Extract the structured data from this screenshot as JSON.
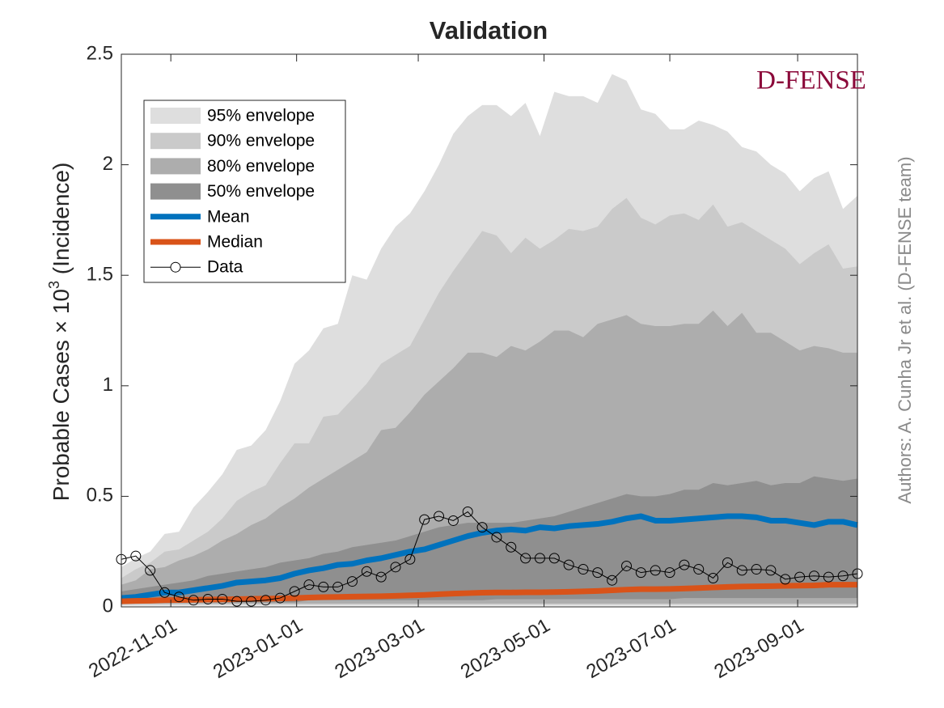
{
  "chart_data": {
    "type": "envelope",
    "title": "Validation",
    "ylabel_parts": [
      "Probable Cases × 10",
      "3",
      " (Incidence)"
    ],
    "watermark": "D-FENSE",
    "credit": "Authors: A. Cunha Jr et al. (D-FENSE team)",
    "x": [
      "2022-10-08",
      "2022-10-15",
      "2022-10-22",
      "2022-10-29",
      "2022-11-05",
      "2022-11-12",
      "2022-11-19",
      "2022-11-26",
      "2022-12-03",
      "2022-12-10",
      "2022-12-17",
      "2022-12-24",
      "2022-12-31",
      "2023-01-07",
      "2023-01-14",
      "2023-01-21",
      "2023-01-28",
      "2023-02-04",
      "2023-02-11",
      "2023-02-18",
      "2023-02-25",
      "2023-03-04",
      "2023-03-11",
      "2023-03-18",
      "2023-03-25",
      "2023-04-01",
      "2023-04-08",
      "2023-04-15",
      "2023-04-22",
      "2023-04-29",
      "2023-05-06",
      "2023-05-13",
      "2023-05-20",
      "2023-05-27",
      "2023-06-03",
      "2023-06-10",
      "2023-06-17",
      "2023-06-24",
      "2023-07-01",
      "2023-07-08",
      "2023-07-15",
      "2023-07-22",
      "2023-07-29",
      "2023-08-05",
      "2023-08-12",
      "2023-08-19",
      "2023-08-26",
      "2023-09-02",
      "2023-09-09",
      "2023-09-16",
      "2023-09-23",
      "2023-09-30"
    ],
    "xlim": [
      "2022-10-08",
      "2023-09-30"
    ],
    "xticks": [
      "2022-11-01",
      "2023-01-01",
      "2023-03-01",
      "2023-05-01",
      "2023-07-01",
      "2023-09-01"
    ],
    "ylim": [
      0,
      2.5
    ],
    "yticks": [
      0,
      0.5,
      1,
      1.5,
      2,
      2.5
    ],
    "envelopes": [
      {
        "name": "95% envelope",
        "color": "#dedede",
        "lower": [
          0.005,
          0.005,
          0.005,
          0.005,
          0.005,
          0.005,
          0.005,
          0.005,
          0.005,
          0.005,
          0.005,
          0.005,
          0.005,
          0.005,
          0.005,
          0.005,
          0.005,
          0.005,
          0.005,
          0.005,
          0.005,
          0.005,
          0.005,
          0.005,
          0.005,
          0.005,
          0.005,
          0.005,
          0.005,
          0.005,
          0.005,
          0.005,
          0.005,
          0.005,
          0.005,
          0.005,
          0.005,
          0.005,
          0.005,
          0.005,
          0.005,
          0.005,
          0.005,
          0.005,
          0.005,
          0.005,
          0.005,
          0.005,
          0.005,
          0.005,
          0.005,
          0.005
        ],
        "upper": [
          0.18,
          0.22,
          0.25,
          0.33,
          0.34,
          0.45,
          0.52,
          0.6,
          0.71,
          0.73,
          0.8,
          0.93,
          1.1,
          1.16,
          1.26,
          1.28,
          1.5,
          1.48,
          1.62,
          1.72,
          1.78,
          1.88,
          2.0,
          2.14,
          2.22,
          2.27,
          2.27,
          2.22,
          2.28,
          2.13,
          2.33,
          2.31,
          2.31,
          2.28,
          2.41,
          2.38,
          2.25,
          2.23,
          2.16,
          2.16,
          2.2,
          2.18,
          2.15,
          2.08,
          2.06,
          2.0,
          1.96,
          1.88,
          1.94,
          1.97,
          1.8,
          1.86
        ]
      },
      {
        "name": "90% envelope",
        "color": "#cacaca",
        "lower": [
          0.01,
          0.01,
          0.01,
          0.01,
          0.01,
          0.01,
          0.01,
          0.01,
          0.01,
          0.01,
          0.01,
          0.01,
          0.01,
          0.01,
          0.01,
          0.01,
          0.01,
          0.01,
          0.01,
          0.01,
          0.01,
          0.01,
          0.01,
          0.01,
          0.01,
          0.01,
          0.01,
          0.01,
          0.01,
          0.01,
          0.01,
          0.01,
          0.01,
          0.01,
          0.01,
          0.01,
          0.01,
          0.01,
          0.01,
          0.01,
          0.01,
          0.01,
          0.01,
          0.01,
          0.01,
          0.01,
          0.01,
          0.01,
          0.01,
          0.01,
          0.01,
          0.01
        ],
        "upper": [
          0.13,
          0.17,
          0.2,
          0.25,
          0.26,
          0.3,
          0.34,
          0.4,
          0.48,
          0.52,
          0.55,
          0.65,
          0.74,
          0.74,
          0.86,
          0.87,
          0.94,
          1.01,
          1.1,
          1.14,
          1.18,
          1.3,
          1.42,
          1.52,
          1.61,
          1.7,
          1.68,
          1.6,
          1.67,
          1.62,
          1.66,
          1.71,
          1.7,
          1.72,
          1.8,
          1.85,
          1.76,
          1.73,
          1.77,
          1.78,
          1.75,
          1.82,
          1.72,
          1.74,
          1.7,
          1.66,
          1.62,
          1.55,
          1.6,
          1.64,
          1.53,
          1.54
        ]
      },
      {
        "name": "80% envelope",
        "color": "#adadad",
        "lower": [
          0.015,
          0.015,
          0.015,
          0.015,
          0.015,
          0.015,
          0.015,
          0.015,
          0.015,
          0.015,
          0.015,
          0.015,
          0.015,
          0.015,
          0.015,
          0.015,
          0.015,
          0.015,
          0.015,
          0.015,
          0.015,
          0.015,
          0.015,
          0.015,
          0.015,
          0.015,
          0.015,
          0.015,
          0.015,
          0.015,
          0.015,
          0.015,
          0.015,
          0.015,
          0.015,
          0.015,
          0.015,
          0.015,
          0.015,
          0.015,
          0.015,
          0.015,
          0.015,
          0.015,
          0.015,
          0.015,
          0.015,
          0.015,
          0.015,
          0.015,
          0.015,
          0.015
        ],
        "upper": [
          0.1,
          0.12,
          0.17,
          0.18,
          0.21,
          0.23,
          0.26,
          0.3,
          0.33,
          0.37,
          0.4,
          0.45,
          0.49,
          0.54,
          0.58,
          0.62,
          0.66,
          0.7,
          0.8,
          0.81,
          0.88,
          0.96,
          1.02,
          1.08,
          1.15,
          1.15,
          1.13,
          1.18,
          1.16,
          1.2,
          1.25,
          1.25,
          1.22,
          1.28,
          1.3,
          1.32,
          1.28,
          1.27,
          1.27,
          1.28,
          1.28,
          1.34,
          1.27,
          1.33,
          1.24,
          1.24,
          1.2,
          1.16,
          1.18,
          1.17,
          1.15,
          1.15
        ]
      },
      {
        "name": "50% envelope",
        "color": "#8f8f8f",
        "lower": [
          0.02,
          0.02,
          0.02,
          0.02,
          0.02,
          0.02,
          0.02,
          0.02,
          0.02,
          0.02,
          0.02,
          0.02,
          0.02,
          0.03,
          0.03,
          0.03,
          0.03,
          0.03,
          0.03,
          0.03,
          0.03,
          0.03,
          0.03,
          0.03,
          0.03,
          0.03,
          0.035,
          0.035,
          0.035,
          0.035,
          0.035,
          0.035,
          0.035,
          0.035,
          0.035,
          0.035,
          0.035,
          0.035,
          0.035,
          0.04,
          0.04,
          0.04,
          0.04,
          0.04,
          0.04,
          0.04,
          0.04,
          0.04,
          0.04,
          0.04,
          0.04,
          0.04
        ],
        "upper": [
          0.07,
          0.08,
          0.09,
          0.1,
          0.11,
          0.12,
          0.14,
          0.15,
          0.16,
          0.17,
          0.18,
          0.2,
          0.21,
          0.22,
          0.24,
          0.25,
          0.27,
          0.28,
          0.29,
          0.3,
          0.32,
          0.34,
          0.36,
          0.37,
          0.38,
          0.38,
          0.38,
          0.38,
          0.39,
          0.4,
          0.41,
          0.43,
          0.45,
          0.47,
          0.49,
          0.51,
          0.5,
          0.5,
          0.51,
          0.53,
          0.53,
          0.56,
          0.55,
          0.56,
          0.57,
          0.55,
          0.56,
          0.56,
          0.59,
          0.58,
          0.57,
          0.58
        ]
      }
    ],
    "series": [
      {
        "name": "Mean",
        "color": "#0072bd",
        "style": "thick",
        "values": [
          0.04,
          0.045,
          0.055,
          0.065,
          0.065,
          0.075,
          0.085,
          0.095,
          0.11,
          0.115,
          0.12,
          0.13,
          0.15,
          0.165,
          0.175,
          0.19,
          0.195,
          0.21,
          0.22,
          0.235,
          0.25,
          0.26,
          0.28,
          0.3,
          0.32,
          0.335,
          0.345,
          0.35,
          0.345,
          0.36,
          0.355,
          0.365,
          0.37,
          0.375,
          0.385,
          0.4,
          0.41,
          0.39,
          0.39,
          0.395,
          0.4,
          0.405,
          0.41,
          0.41,
          0.405,
          0.39,
          0.39,
          0.38,
          0.37,
          0.385,
          0.385,
          0.37
        ]
      },
      {
        "name": "Median",
        "color": "#d95319",
        "style": "thick",
        "values": [
          0.025,
          0.027,
          0.028,
          0.03,
          0.031,
          0.032,
          0.033,
          0.034,
          0.035,
          0.036,
          0.037,
          0.038,
          0.04,
          0.042,
          0.044,
          0.045,
          0.046,
          0.047,
          0.048,
          0.05,
          0.052,
          0.054,
          0.057,
          0.06,
          0.062,
          0.064,
          0.065,
          0.065,
          0.066,
          0.066,
          0.067,
          0.068,
          0.07,
          0.072,
          0.075,
          0.078,
          0.08,
          0.08,
          0.081,
          0.083,
          0.085,
          0.088,
          0.09,
          0.092,
          0.093,
          0.094,
          0.095,
          0.096,
          0.097,
          0.1,
          0.1,
          0.1
        ]
      },
      {
        "name": "Data",
        "color": "#000000",
        "style": "markers",
        "values": [
          0.215,
          0.23,
          0.165,
          0.065,
          0.045,
          0.03,
          0.035,
          0.035,
          0.025,
          0.025,
          0.03,
          0.04,
          0.07,
          0.1,
          0.09,
          0.09,
          0.115,
          0.16,
          0.135,
          0.18,
          0.215,
          0.395,
          0.41,
          0.39,
          0.43,
          0.36,
          0.315,
          0.27,
          0.22,
          0.22,
          0.22,
          0.19,
          0.17,
          0.155,
          0.12,
          0.185,
          0.155,
          0.165,
          0.155,
          0.19,
          0.17,
          0.13,
          0.2,
          0.165,
          0.17,
          0.165,
          0.125,
          0.135,
          0.14,
          0.135,
          0.14,
          0.15
        ]
      }
    ]
  }
}
